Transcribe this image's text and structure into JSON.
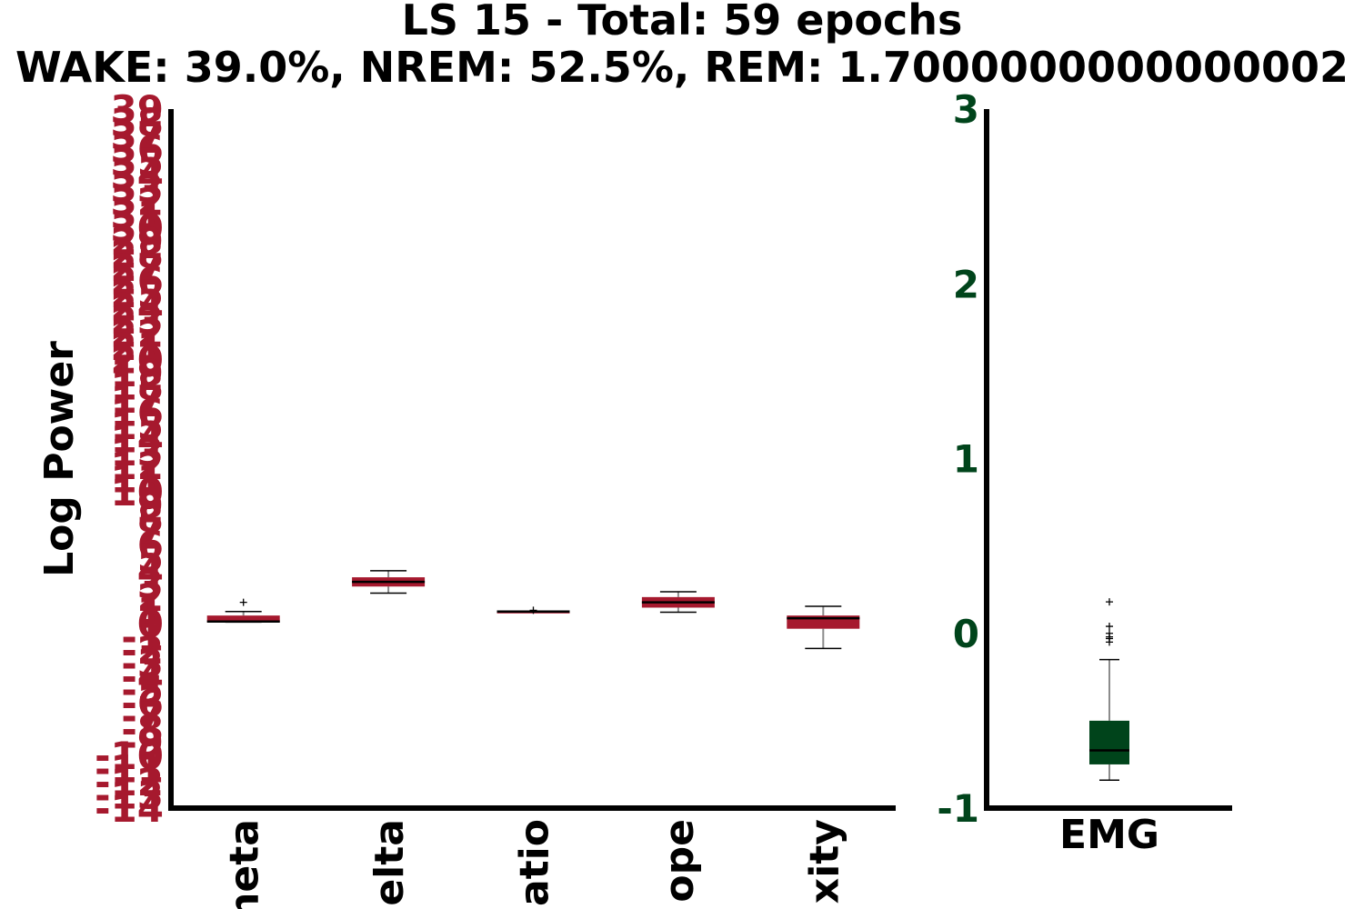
{
  "chart_data": [
    {
      "type": "box",
      "title": "LS 15 - Total: 59 epochs",
      "subtitle": "WAKE: 39.0%, NREM: 52.5%, REM: 1.7000000000000002",
      "ylabel": "Log Power",
      "ylim": [
        -14,
        39
      ],
      "tick_color": "#a6192e",
      "box_color": "#a6192e",
      "y_ticks": [
        39,
        38,
        37,
        36,
        35,
        34,
        33,
        32,
        31,
        30,
        29,
        28,
        27,
        26,
        25,
        24,
        23,
        22,
        21,
        20,
        19,
        18,
        17,
        16,
        15,
        14,
        13,
        12,
        11,
        10,
        9,
        8,
        7,
        6,
        5,
        4,
        3,
        2,
        1,
        0,
        -1,
        -2,
        -3,
        -4,
        -5,
        -6,
        -7,
        -8,
        -9,
        -10,
        -11,
        -12,
        -13,
        -14
      ],
      "y_tick_labels": [
        "39",
        "38",
        "37",
        "36",
        "35",
        "34",
        "33",
        "32",
        "31",
        "30",
        "29",
        "28",
        "27",
        "26",
        "25",
        "24",
        "23",
        "22",
        "21",
        "20",
        "19",
        "18",
        "17",
        "16",
        "15",
        "14",
        "13",
        "12",
        "11",
        "10",
        "9",
        "8",
        "7",
        "6",
        "5",
        "4",
        "3",
        "2",
        "1",
        "0",
        "-1",
        "-2",
        "-3",
        "-4",
        "-5",
        "-6",
        "-7",
        "-8",
        "-9",
        "-10",
        "-11",
        "-12",
        "-13",
        "-14"
      ],
      "categories": [
        "heta",
        "elta",
        "atio",
        "ope",
        "xity"
      ],
      "boxes": [
        {
          "whislo": 0.1,
          "q1": 0.1,
          "med": 0.15,
          "q3": 0.6,
          "whishi": 0.9,
          "fliers": [
            1.6
          ]
        },
        {
          "whislo": 2.3,
          "q1": 2.8,
          "med": 3.15,
          "q3": 3.5,
          "whishi": 4.0,
          "fliers": []
        },
        {
          "whislo": 0.9,
          "q1": 0.9,
          "med": 0.9,
          "q3": 0.9,
          "whishi": 0.9,
          "fliers": [
            1.0
          ]
        },
        {
          "whislo": 0.85,
          "q1": 1.2,
          "med": 1.6,
          "q3": 2.0,
          "whishi": 2.4,
          "fliers": []
        },
        {
          "whislo": -1.9,
          "q1": -0.4,
          "med": 0.4,
          "q3": 0.6,
          "whishi": 1.3,
          "fliers": []
        }
      ]
    },
    {
      "type": "box",
      "ylim": [
        -1,
        3
      ],
      "tick_color": "#00441b",
      "box_color": "#00441b",
      "y_ticks": [
        3,
        2,
        1,
        0,
        -1
      ],
      "y_tick_labels": [
        "3",
        "2",
        "1",
        "0",
        "-1"
      ],
      "categories": [
        "EMG"
      ],
      "boxes": [
        {
          "whislo": -0.84,
          "q1": -0.75,
          "med": -0.67,
          "q3": -0.5,
          "whishi": -0.15,
          "fliers": [
            0.18,
            0.04,
            0.0,
            -0.02,
            -0.03,
            -0.05
          ]
        }
      ]
    }
  ]
}
